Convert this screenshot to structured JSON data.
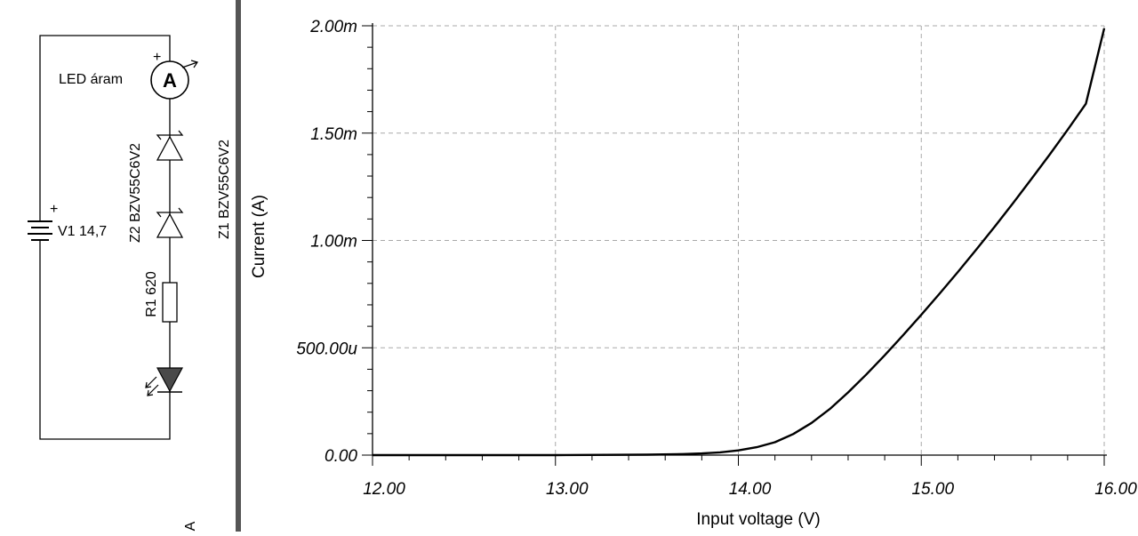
{
  "schematic": {
    "meter_label": "LED áram",
    "meter_symbol": "A",
    "plus_sign": "+",
    "source_label": "V1 14,7",
    "z2_label": "Z2 BZV55C6V2",
    "z1_label": "Z1 BZV55C6V2",
    "r1_label": "R1 620",
    "stray_glyph": "A"
  },
  "chart_data": {
    "type": "line",
    "xlabel": "Input voltage (V)",
    "ylabel": "Current (A)",
    "xlim": [
      12.0,
      16.0
    ],
    "ylim": [
      0,
      0.002
    ],
    "x_ticks": [
      12.0,
      13.0,
      14.0,
      15.0,
      16.0
    ],
    "x_tick_labels": [
      "12.00",
      "13.00",
      "14.00",
      "15.00",
      "16.00"
    ],
    "y_ticks": [
      0,
      0.0005,
      0.001,
      0.0015,
      0.002
    ],
    "y_tick_labels": [
      "0.00",
      "500.00u",
      "1.00m",
      "1.50m",
      "2.00m"
    ],
    "grid": true,
    "colors": {
      "line": "#000000",
      "grid": "#a8a8a8",
      "divider": "#555555"
    },
    "series": [
      {
        "x": [
          12.0,
          13.0,
          13.5,
          13.7,
          13.8,
          13.9,
          14.0,
          14.1,
          14.2,
          14.3,
          14.4,
          14.5,
          14.6,
          14.7,
          14.8,
          14.9,
          15.0,
          15.1,
          15.2,
          15.3,
          15.4,
          15.5,
          15.6,
          15.7,
          15.8,
          15.9,
          16.0
        ],
        "y": [
          0.0,
          0.0,
          2e-06,
          5e-06,
          8e-06,
          1.3e-05,
          2.2e-05,
          3.7e-05,
          6e-05,
          9.8e-05,
          0.00015,
          0.000215,
          0.000292,
          0.000376,
          0.000465,
          0.000558,
          0.000654,
          0.000752,
          0.000853,
          0.000957,
          0.001063,
          0.001172,
          0.001284,
          0.001398,
          0.001516,
          0.001637,
          0.001988
        ]
      }
    ]
  }
}
